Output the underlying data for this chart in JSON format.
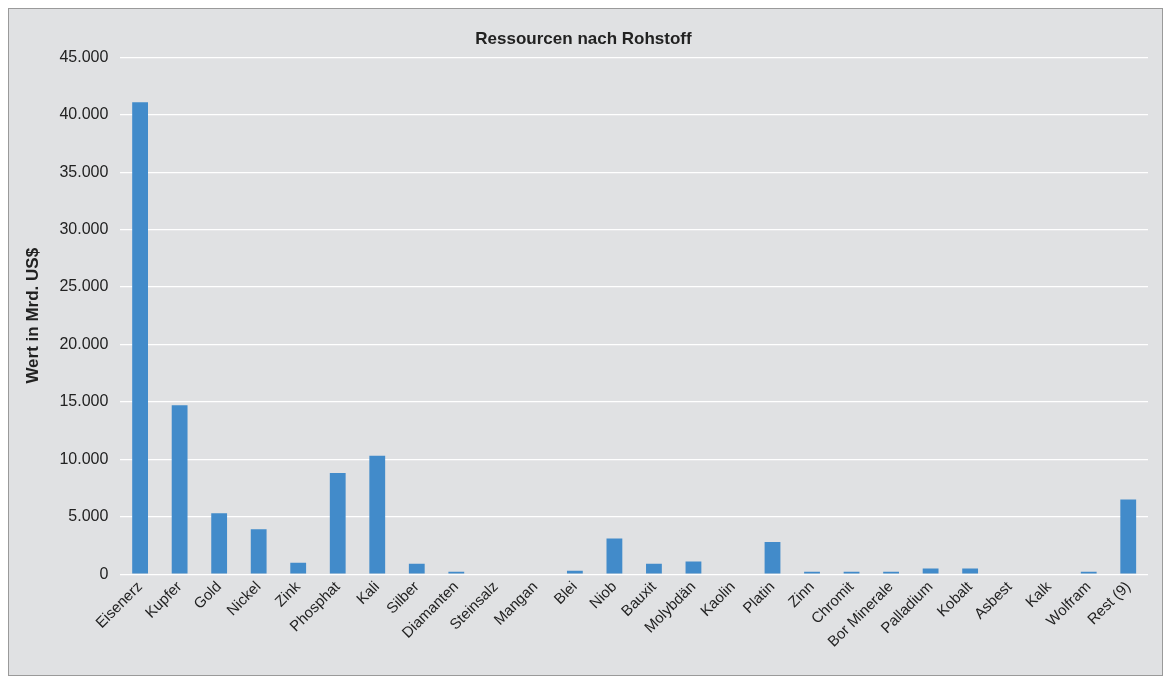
{
  "chart_data": {
    "type": "bar",
    "title": "Ressourcen nach Rohstoff",
    "ylabel": "Wert in Mrd. US$",
    "categories": [
      "Eisenerz",
      "Kupfer",
      "Gold",
      "Nickel",
      "Zink",
      "Phosphat",
      "Kali",
      "Silber",
      "Diamanten",
      "Steinsalz",
      "Mangan",
      "Blei",
      "Niob",
      "Bauxit",
      "Molybdän",
      "Kaolin",
      "Platin",
      "Zinn",
      "Chromit",
      "Bor Minerale",
      "Palladium",
      "Kobalt",
      "Asbest",
      "Kalk",
      "Wolfram",
      "Rest (9)"
    ],
    "values": [
      41100,
      14700,
      5300,
      3900,
      1000,
      8800,
      10300,
      900,
      200,
      0,
      0,
      300,
      3100,
      900,
      1100,
      0,
      2800,
      200,
      200,
      200,
      500,
      500,
      0,
      0,
      200,
      6500
    ],
    "color": "#428bca",
    "ylim": [
      0,
      45000
    ],
    "yticks": [
      {
        "value": 0,
        "label": "0"
      },
      {
        "value": 5000,
        "label": "5.000"
      },
      {
        "value": 10000,
        "label": "10.000"
      },
      {
        "value": 15000,
        "label": "15.000"
      },
      {
        "value": 20000,
        "label": "20.000"
      },
      {
        "value": 25000,
        "label": "25.000"
      },
      {
        "value": 30000,
        "label": "30.000"
      },
      {
        "value": 35000,
        "label": "35.000"
      },
      {
        "value": 40000,
        "label": "40.000"
      },
      {
        "value": 45000,
        "label": "45.000"
      }
    ],
    "grid": "y"
  }
}
